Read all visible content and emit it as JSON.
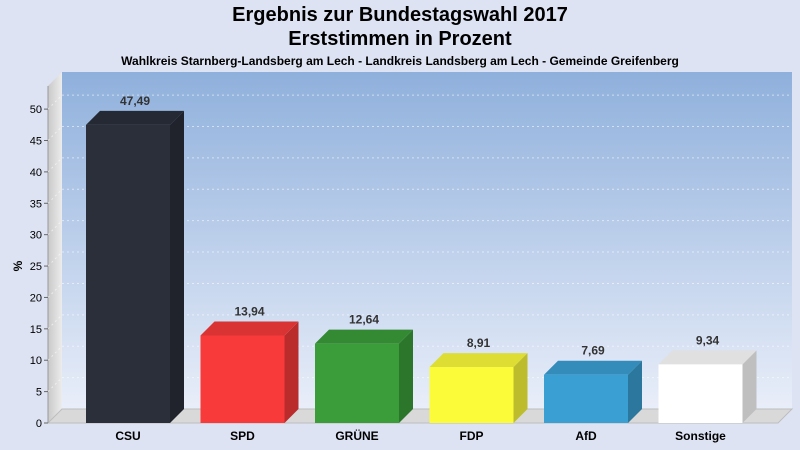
{
  "header": {
    "title_line1": "Ergebnis zur Bundestagswahl 2017",
    "title_line2": "Erststimmen in Prozent",
    "subtitle": "Wahlkreis Starnberg-Landsberg am Lech - Landkreis Landsberg am Lech - Gemeinde Greifenberg"
  },
  "chart_data": {
    "type": "bar",
    "title": "Ergebnis zur Bundestagswahl 2017",
    "subtitle": "Erststimmen in Prozent",
    "ylabel": "%",
    "xlabel": "",
    "ylim": [
      0,
      50
    ],
    "yticks": [
      0,
      5,
      10,
      15,
      20,
      25,
      30,
      35,
      40,
      45,
      50
    ],
    "grid": true,
    "categories": [
      "CSU",
      "SPD",
      "GRÜNE",
      "FDP",
      "AfD",
      "Sonstige"
    ],
    "values": [
      47.49,
      13.94,
      12.64,
      8.91,
      7.69,
      9.34
    ],
    "value_labels": [
      "47,49",
      "13,94",
      "12,64",
      "8,91",
      "7,69",
      "9,34"
    ],
    "colors": [
      "#2a2f3a",
      "#f83a3a",
      "#3a9d3a",
      "#fbfb3a",
      "#3a9fd3",
      "#ffffff"
    ]
  }
}
